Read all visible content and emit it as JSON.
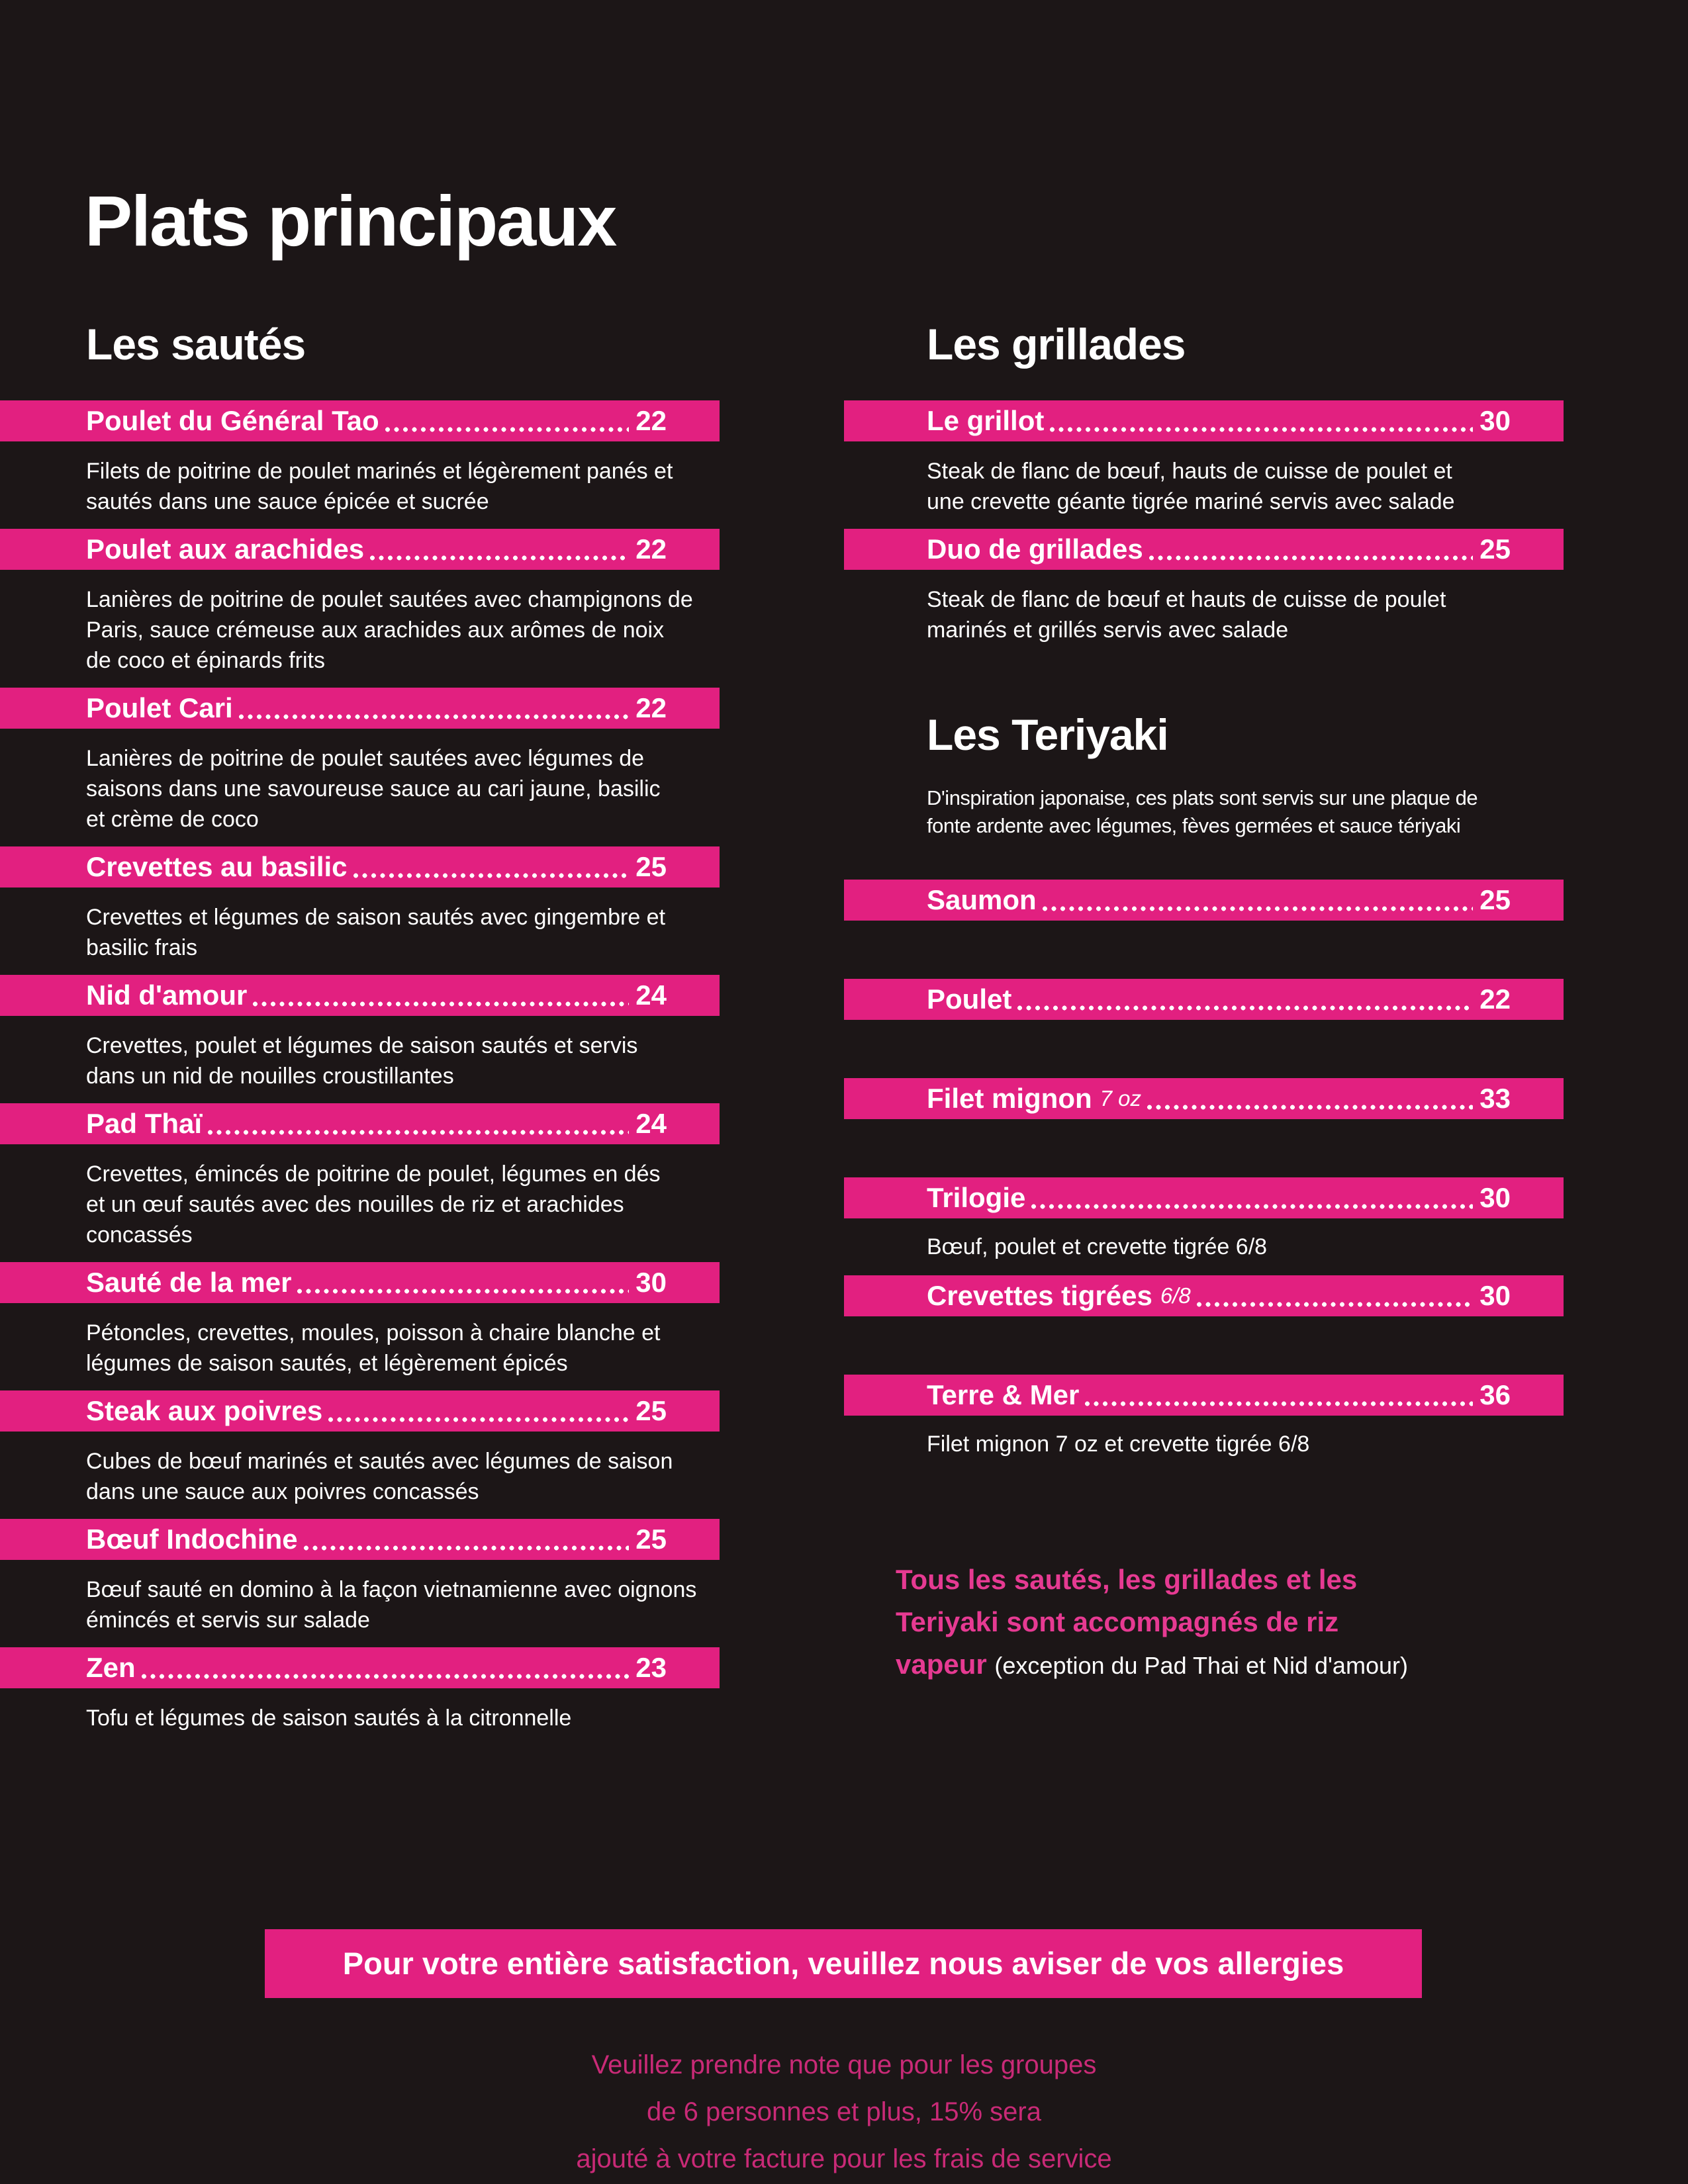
{
  "colors": {
    "pink": "#E22080",
    "note-pink": "#E63A92",
    "foot-pink": "#C92A77",
    "bg": "#1C1617"
  },
  "page": {
    "title": "Plats principaux"
  },
  "sections": {
    "sautes": {
      "title": "Les sautés",
      "items": [
        {
          "name": "Poulet du Général Tao",
          "price": "22",
          "desc": "Filets de poitrine de poulet marinés et légèrement panés et\nsautés dans une sauce épicée et sucrée"
        },
        {
          "name": "Poulet aux arachides",
          "price": "22",
          "desc": "Lanières de poitrine de poulet sautées avec champignons de\nParis, sauce crémeuse aux arachides aux arômes de noix\nde coco et épinards frits"
        },
        {
          "name": "Poulet Cari",
          "price": "22",
          "desc": "Lanières de poitrine de poulet sautées avec légumes de\nsaisons dans une savoureuse sauce au cari jaune, basilic\net crème de coco"
        },
        {
          "name": "Crevettes au basilic",
          "price": "25",
          "desc": "Crevettes et légumes de saison sautés avec gingembre et\nbasilic frais"
        },
        {
          "name": "Nid d'amour",
          "price": "24",
          "desc": "Crevettes, poulet et légumes de saison sautés et servis\ndans un nid de nouilles croustillantes"
        },
        {
          "name": "Pad Thaï",
          "price": "24",
          "desc": "Crevettes, émincés de poitrine de poulet, légumes en dés\net un œuf sautés avec des nouilles de riz et arachides\nconcassés"
        },
        {
          "name": "Sauté de la mer",
          "price": "30",
          "desc": "Pétoncles, crevettes, moules, poisson à chaire blanche et\nlégumes de saison sautés, et légèrement épicés"
        },
        {
          "name": "Steak aux poivres",
          "price": "25",
          "desc": "Cubes de bœuf marinés et sautés avec légumes de saison\ndans une sauce aux poivres concassés"
        },
        {
          "name": "Bœuf Indochine",
          "price": "25",
          "desc": "Bœuf sauté en domino à la façon vietnamienne avec oignons\némincés et servis sur salade"
        },
        {
          "name": "Zen",
          "price": "23",
          "desc": "Tofu et légumes de saison sautés à la citronnelle"
        }
      ]
    },
    "grillades": {
      "title": "Les grillades",
      "items": [
        {
          "name": "Le grillot",
          "price": "30",
          "desc": "Steak de flanc de bœuf, hauts de cuisse de poulet et\nune crevette géante tigrée mariné  servis avec salade"
        },
        {
          "name": "Duo de grillades",
          "price": "25",
          "desc": "Steak de flanc de bœuf et hauts de cuisse de poulet\nmarinés et grillés servis avec salade"
        }
      ]
    },
    "teriyaki": {
      "title": "Les Teriyaki",
      "intro": "D'inspiration japonaise, ces plats sont servis sur une plaque de\nfonte ardente avec légumes, fèves germées et sauce tériyaki",
      "items": [
        {
          "name": "Saumon",
          "price": "25"
        },
        {
          "name": "Poulet",
          "price": "22"
        },
        {
          "name": "Filet mignon",
          "suffix": "7 oz",
          "price": "33"
        },
        {
          "name": "Trilogie",
          "price": "30",
          "desc": "Bœuf, poulet et crevette tigrée 6/8"
        },
        {
          "name": "Crevettes tigrées",
          "suffix": "6/8",
          "price": "30"
        },
        {
          "name": "Terre & Mer",
          "price": "36",
          "desc": "Filet mignon 7 oz et crevette tigrée 6/8"
        }
      ]
    }
  },
  "note": {
    "line1": "Tous les sautés, les grillades et les",
    "line2": "Teriyaki sont accompagnés de riz",
    "line3_pink": "vapeur",
    "line3_white": "(exception du Pad Thai et Nid d'amour)"
  },
  "footer": {
    "banner": "Pour votre entière satisfaction, veuillez nous aviser de vos allergies",
    "lines": [
      "Veuillez prendre note que pour les groupes",
      "de 6 personnes et plus, 15% sera",
      "ajouté à votre facture pour les frais de service"
    ]
  }
}
